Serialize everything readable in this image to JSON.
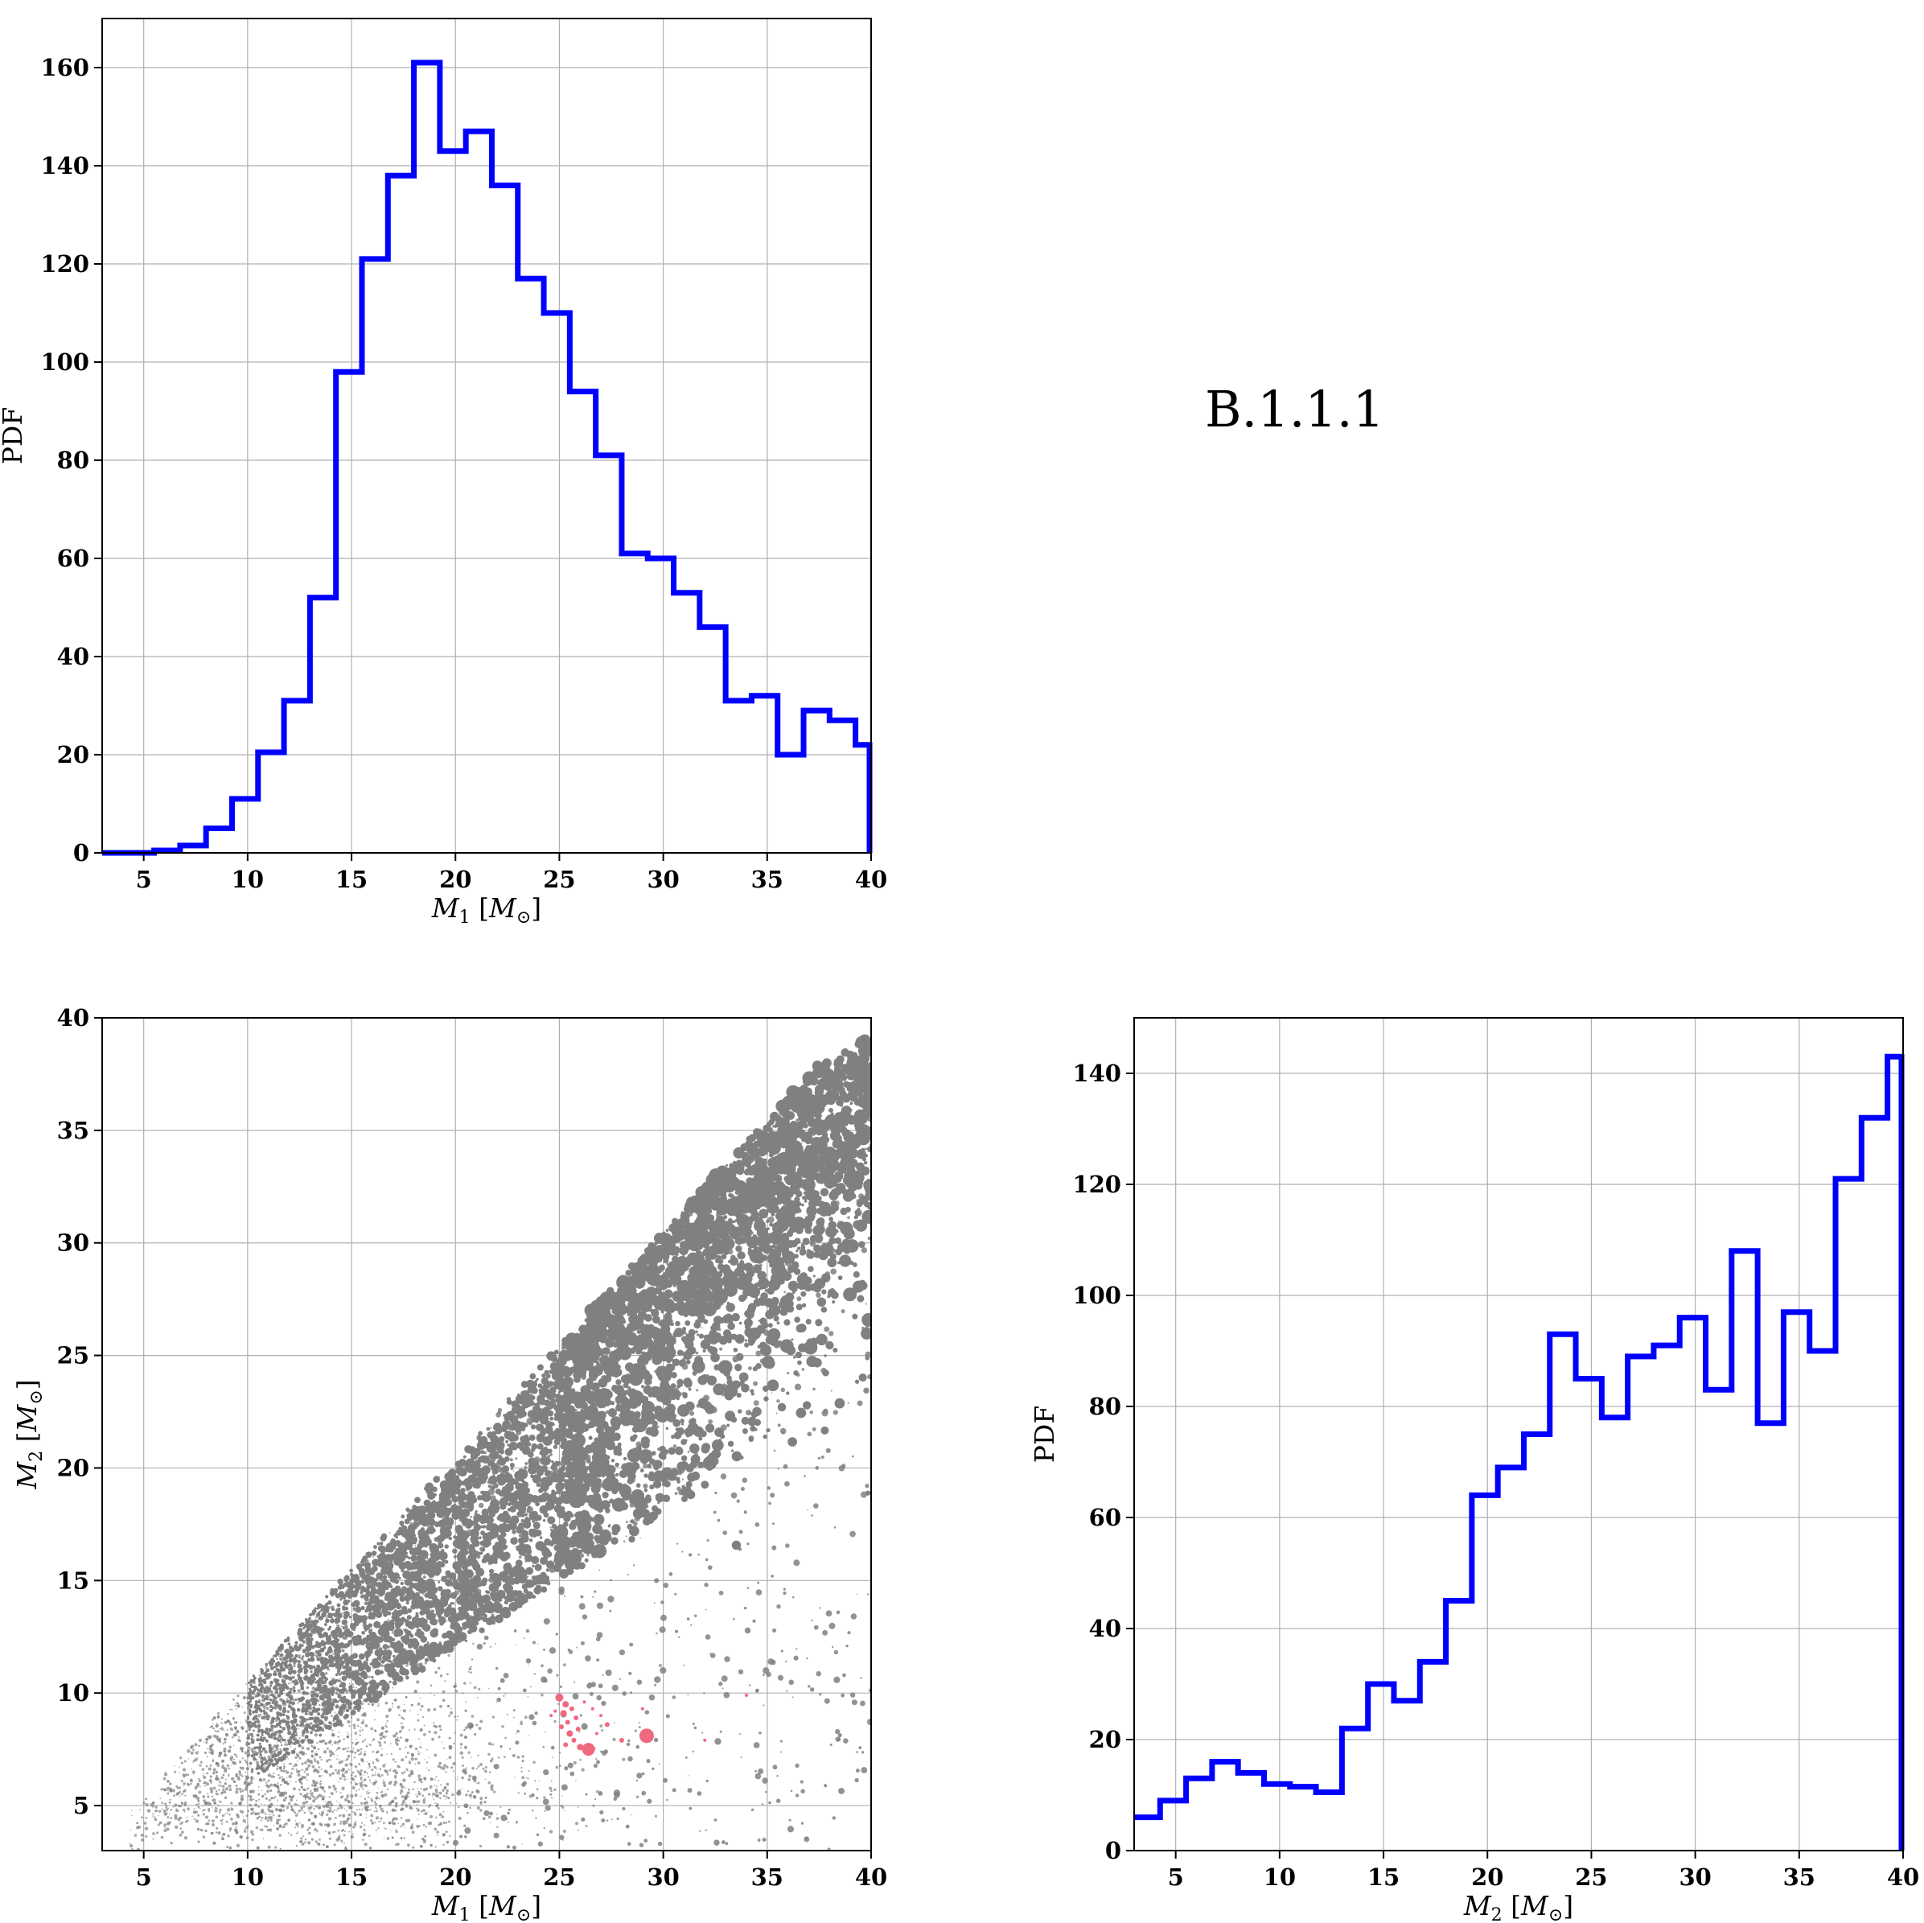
{
  "figure_label": "B.1.1.1",
  "colors": {
    "hist": "#0000ff",
    "scatter_main": "#808080",
    "scatter_highlight": "#f0697f"
  },
  "chart_data": [
    {
      "id": "hist-m1",
      "type": "histogram",
      "xlabel": {
        "main": "M",
        "sub": "1",
        "unit_open": " [M",
        "unit_close": "]"
      },
      "ylabel": "PDF",
      "xlim": [
        3,
        40
      ],
      "ylim": [
        0,
        170
      ],
      "xticks": [
        5,
        10,
        15,
        20,
        25,
        30,
        35,
        40
      ],
      "yticks": [
        0,
        20,
        40,
        60,
        80,
        100,
        120,
        140,
        160
      ],
      "grid": true,
      "bin_edges": [
        3.0,
        4.25,
        5.5,
        6.75,
        8.0,
        9.25,
        10.5,
        11.75,
        13.0,
        14.25,
        15.5,
        16.75,
        18.0,
        19.25,
        20.5,
        21.75,
        23.0,
        24.25,
        25.5,
        26.75,
        28.0,
        29.25,
        30.5,
        31.75,
        33.0,
        34.25,
        35.5,
        36.75,
        38.0,
        39.25
      ],
      "values": [
        0,
        0,
        0.5,
        1.5,
        5,
        11,
        20.5,
        31,
        52,
        98,
        121,
        138,
        161,
        143,
        147,
        136,
        117,
        110,
        94,
        81,
        61,
        60,
        53,
        46,
        31,
        32,
        20,
        29,
        27,
        22
      ]
    },
    {
      "id": "scatter-m1-m2",
      "type": "scatter",
      "xlabel": {
        "main": "M",
        "sub": "1",
        "unit_open": " [M",
        "unit_close": "]"
      },
      "ylabel": {
        "main": "M",
        "sub": "2",
        "unit_open": " [M",
        "unit_close": "]"
      },
      "xlim": [
        3,
        40
      ],
      "ylim": [
        3,
        40
      ],
      "xticks": [
        5,
        10,
        15,
        20,
        25,
        30,
        35,
        40
      ],
      "yticks": [
        5,
        10,
        15,
        20,
        25,
        30,
        35,
        40
      ],
      "grid": true,
      "highlight_points": [
        [
          25.0,
          9.8
        ],
        [
          25.3,
          9.5
        ],
        [
          25.6,
          9.3
        ],
        [
          25.2,
          9.1
        ],
        [
          25.8,
          8.9
        ],
        [
          25.4,
          8.7
        ],
        [
          25.9,
          8.4
        ],
        [
          25.5,
          8.2
        ],
        [
          25.7,
          7.9
        ],
        [
          25.3,
          7.7
        ],
        [
          26.0,
          7.6
        ],
        [
          26.4,
          7.5
        ],
        [
          29.2,
          8.1
        ],
        [
          28.0,
          7.9
        ],
        [
          27.3,
          8.6
        ],
        [
          27.0,
          9.0
        ],
        [
          26.6,
          9.3
        ],
        [
          24.8,
          9.2
        ],
        [
          24.6,
          9.0
        ],
        [
          26.2,
          9.6
        ],
        [
          29.0,
          9.3
        ],
        [
          32.0,
          7.9
        ],
        [
          34.0,
          9.9
        ],
        [
          26.8,
          8.2
        ],
        [
          25.1,
          8.5
        ]
      ],
      "highlight_sizes": [
        5,
        4,
        3,
        4,
        3,
        3,
        3,
        4,
        3,
        3,
        4,
        8,
        9,
        3,
        3,
        2,
        2,
        2,
        2,
        2,
        2,
        2,
        2,
        2,
        3
      ]
    },
    {
      "id": "hist-m2",
      "type": "histogram",
      "xlabel": {
        "main": "M",
        "sub": "2",
        "unit_open": " [M",
        "unit_close": "]"
      },
      "ylabel": "PDF",
      "xlim": [
        3,
        40
      ],
      "ylim": [
        0,
        150
      ],
      "xticks": [
        5,
        10,
        15,
        20,
        25,
        30,
        35,
        40
      ],
      "yticks": [
        0,
        20,
        40,
        60,
        80,
        100,
        120,
        140
      ],
      "grid": true,
      "bin_edges": [
        3.0,
        4.25,
        5.5,
        6.75,
        8.0,
        9.25,
        10.5,
        11.75,
        13.0,
        14.25,
        15.5,
        16.75,
        18.0,
        19.25,
        20.5,
        21.75,
        23.0,
        24.25,
        25.5,
        26.75,
        28.0,
        29.25,
        30.5,
        31.75,
        33.0,
        34.25,
        35.5,
        36.75,
        38.0,
        39.25
      ],
      "values": [
        6,
        9,
        13,
        16,
        14,
        12,
        11.5,
        10.5,
        22,
        30,
        27,
        34,
        45,
        64,
        69,
        75,
        93,
        85,
        78,
        89,
        91,
        96,
        83,
        108,
        77,
        97,
        90,
        121,
        132,
        143
      ]
    }
  ]
}
